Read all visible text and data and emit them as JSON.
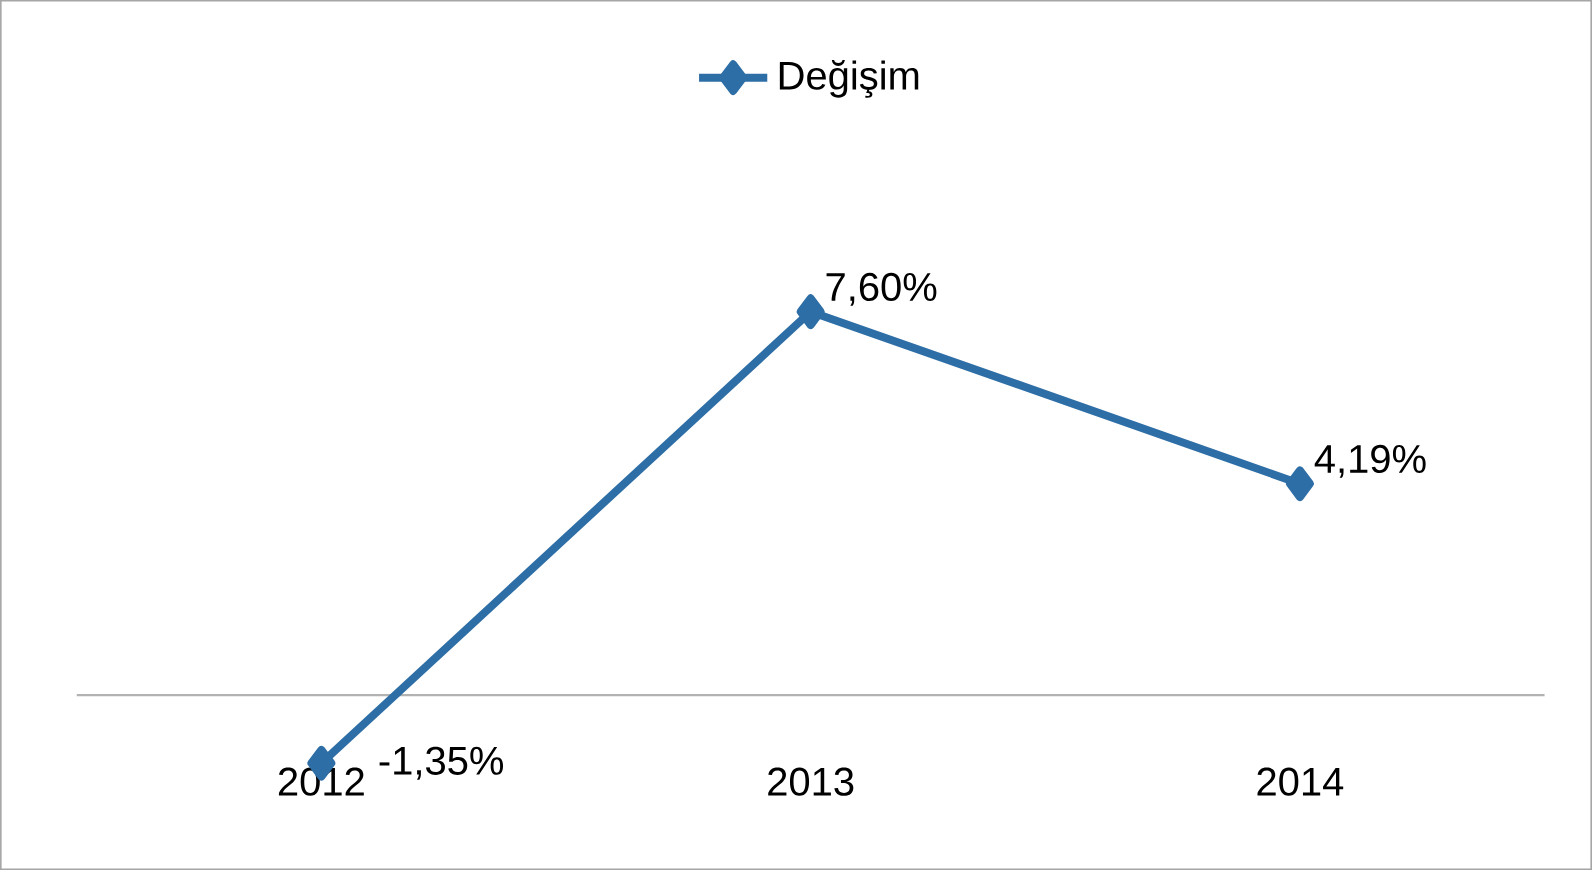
{
  "chart_data": {
    "type": "line",
    "categories": [
      "2012",
      "2013",
      "2014"
    ],
    "series": [
      {
        "name": "Değişim",
        "color": "#2e6ea6",
        "values": [
          -1.35,
          7.6,
          4.19
        ],
        "value_labels": [
          "-1,35%",
          "7,60%",
          "4,19%"
        ]
      }
    ],
    "marker": "diamond",
    "legend": "top",
    "grid": false
  }
}
